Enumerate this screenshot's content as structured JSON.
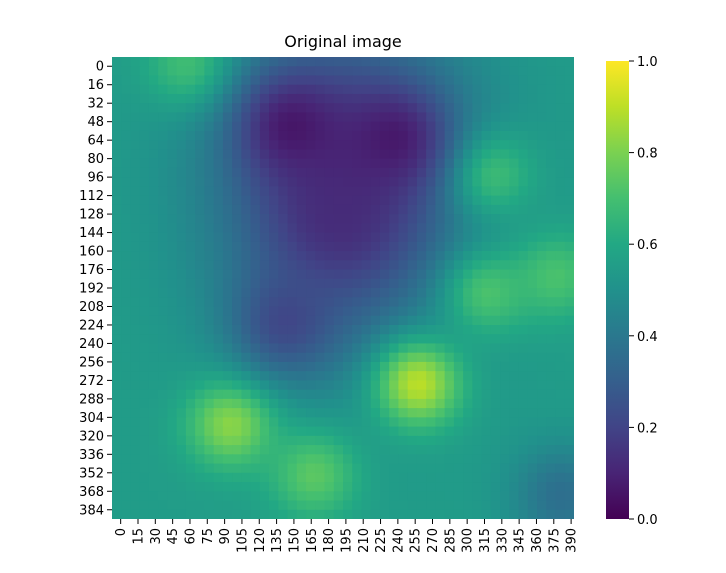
{
  "chart_data": {
    "type": "heatmap",
    "title": "Original image",
    "xlabel": "",
    "ylabel": "",
    "colormap": "viridis",
    "colormap_stops": [
      "#440154",
      "#482475",
      "#414487",
      "#355f8d",
      "#2a788e",
      "#21918c",
      "#22a884",
      "#44bf70",
      "#7ad151",
      "#bddf26",
      "#fde725"
    ],
    "x_range": [
      0,
      400
    ],
    "y_range": [
      0,
      400
    ],
    "x_tick_labels": [
      "0",
      "15",
      "30",
      "45",
      "60",
      "75",
      "90",
      "105",
      "120",
      "135",
      "150",
      "165",
      "180",
      "195",
      "210",
      "225",
      "240",
      "255",
      "270",
      "285",
      "300",
      "315",
      "330",
      "345",
      "360",
      "375",
      "390"
    ],
    "y_tick_labels": [
      "0",
      "16",
      "32",
      "48",
      "64",
      "80",
      "96",
      "112",
      "128",
      "144",
      "160",
      "176",
      "192",
      "208",
      "224",
      "240",
      "256",
      "272",
      "288",
      "304",
      "320",
      "336",
      "352",
      "368",
      "384"
    ],
    "colorbar": {
      "range": [
        0.0,
        1.0
      ],
      "tick_labels": [
        "0.0",
        "0.2",
        "0.4",
        "0.6",
        "0.8",
        "1.0"
      ]
    },
    "grid": false,
    "features": [
      {
        "x": 265,
        "y": 283,
        "value": 0.97
      },
      {
        "x": 103,
        "y": 318,
        "value": 0.88
      },
      {
        "x": 175,
        "y": 362,
        "value": 0.78
      },
      {
        "x": 325,
        "y": 205,
        "value": 0.75
      },
      {
        "x": 330,
        "y": 102,
        "value": 0.72
      },
      {
        "x": 385,
        "y": 190,
        "value": 0.74
      },
      {
        "x": 65,
        "y": 6,
        "value": 0.72
      },
      {
        "x": 155,
        "y": 60,
        "value": 0.03
      },
      {
        "x": 245,
        "y": 70,
        "value": 0.04
      },
      {
        "x": 195,
        "y": 140,
        "value": 0.12
      },
      {
        "x": 150,
        "y": 230,
        "value": 0.18
      },
      {
        "x": 390,
        "y": 380,
        "value": 0.33
      }
    ]
  }
}
